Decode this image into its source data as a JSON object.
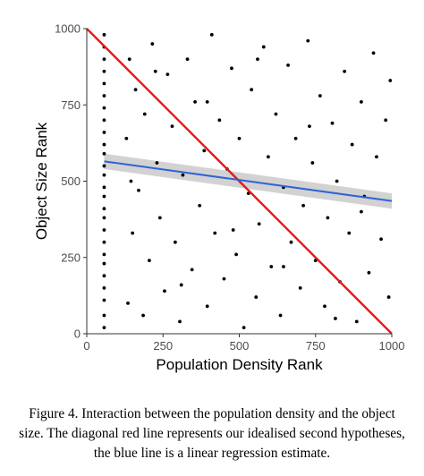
{
  "chart_data": {
    "type": "scatter",
    "xlabel": "Population Density Rank",
    "ylabel": "Object Size Rank",
    "xlim": [
      0,
      1000
    ],
    "ylim": [
      0,
      1000
    ],
    "x_ticks": [
      "0",
      "250",
      "500",
      "750",
      "1000"
    ],
    "y_ticks": [
      "0",
      "250",
      "500",
      "750",
      "1000"
    ],
    "grid": false,
    "series": [
      {
        "kind": "points",
        "color": "#000000",
        "note_points": "approximately 1000 points; a dense vertical column at x≈57, the rest scattered roughly uniformly over x 120–1000, y 0–1000",
        "points": [
          [
            57,
            20
          ],
          [
            57,
            60
          ],
          [
            57,
            110
          ],
          [
            57,
            150
          ],
          [
            57,
            190
          ],
          [
            57,
            230
          ],
          [
            57,
            260
          ],
          [
            57,
            300
          ],
          [
            57,
            340
          ],
          [
            57,
            380
          ],
          [
            57,
            410
          ],
          [
            57,
            450
          ],
          [
            57,
            480
          ],
          [
            57,
            520
          ],
          [
            57,
            550
          ],
          [
            57,
            590
          ],
          [
            57,
            620
          ],
          [
            57,
            660
          ],
          [
            57,
            700
          ],
          [
            57,
            740
          ],
          [
            57,
            780
          ],
          [
            57,
            820
          ],
          [
            57,
            860
          ],
          [
            57,
            900
          ],
          [
            57,
            940
          ],
          [
            57,
            980
          ],
          [
            130,
            640
          ],
          [
            135,
            100
          ],
          [
            140,
            900
          ],
          [
            150,
            330
          ],
          [
            160,
            800
          ],
          [
            170,
            470
          ],
          [
            185,
            60
          ],
          [
            190,
            720
          ],
          [
            205,
            240
          ],
          [
            215,
            950
          ],
          [
            230,
            560
          ],
          [
            240,
            380
          ],
          [
            255,
            140
          ],
          [
            265,
            850
          ],
          [
            280,
            680
          ],
          [
            290,
            300
          ],
          [
            305,
            40
          ],
          [
            315,
            520
          ],
          [
            330,
            900
          ],
          [
            345,
            210
          ],
          [
            355,
            760
          ],
          [
            370,
            420
          ],
          [
            385,
            600
          ],
          [
            395,
            90
          ],
          [
            410,
            980
          ],
          [
            420,
            330
          ],
          [
            435,
            700
          ],
          [
            450,
            180
          ],
          [
            460,
            540
          ],
          [
            475,
            870
          ],
          [
            490,
            260
          ],
          [
            500,
            640
          ],
          [
            515,
            20
          ],
          [
            530,
            460
          ],
          [
            540,
            800
          ],
          [
            555,
            120
          ],
          [
            565,
            360
          ],
          [
            580,
            940
          ],
          [
            595,
            580
          ],
          [
            605,
            220
          ],
          [
            620,
            720
          ],
          [
            635,
            60
          ],
          [
            645,
            480
          ],
          [
            660,
            880
          ],
          [
            670,
            300
          ],
          [
            685,
            640
          ],
          [
            700,
            150
          ],
          [
            710,
            420
          ],
          [
            725,
            960
          ],
          [
            740,
            560
          ],
          [
            750,
            240
          ],
          [
            765,
            780
          ],
          [
            780,
            90
          ],
          [
            790,
            380
          ],
          [
            805,
            690
          ],
          [
            820,
            500
          ],
          [
            830,
            170
          ],
          [
            845,
            860
          ],
          [
            860,
            330
          ],
          [
            870,
            620
          ],
          [
            885,
            40
          ],
          [
            900,
            760
          ],
          [
            910,
            450
          ],
          [
            925,
            200
          ],
          [
            940,
            920
          ],
          [
            950,
            580
          ],
          [
            965,
            310
          ],
          [
            980,
            700
          ],
          [
            990,
            120
          ],
          [
            995,
            830
          ],
          [
            145,
            500
          ],
          [
            225,
            860
          ],
          [
            310,
            160
          ],
          [
            395,
            760
          ],
          [
            480,
            340
          ],
          [
            560,
            900
          ],
          [
            645,
            220
          ],
          [
            730,
            680
          ],
          [
            815,
            50
          ],
          [
            900,
            400
          ]
        ]
      },
      {
        "kind": "line",
        "color": "#e8191e",
        "note": "diagonal reference line y = 1000 - x",
        "x": [
          0,
          1000
        ],
        "y": [
          1000,
          0
        ]
      },
      {
        "kind": "line",
        "color": "#2e64d6",
        "note": "linear regression estimate with grey confidence band",
        "x": [
          57,
          1000
        ],
        "y": [
          565,
          435
        ],
        "band_lower": [
          540,
          410
        ],
        "band_upper": [
          590,
          460
        ],
        "band_color": "#bfbfbf"
      }
    ]
  },
  "caption": {
    "text": "Figure 4. Interaction between the population density and the object size. The diagonal red line represents our idealised second hypotheses, the blue line is a linear regression estimate."
  }
}
